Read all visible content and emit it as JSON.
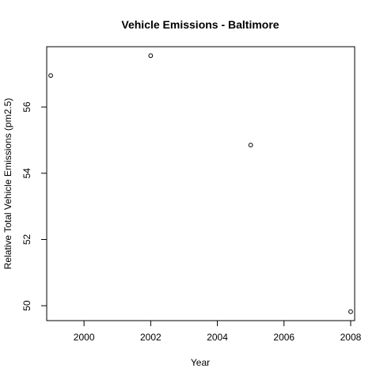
{
  "chart_data": {
    "type": "scatter",
    "title": "Vehicle Emissions - Baltimore",
    "xlabel": "Year",
    "ylabel": "Relative Total Vehicle Emissions (pm2.5)",
    "x": [
      1999,
      2002,
      2005,
      2008
    ],
    "y": [
      56.95,
      57.55,
      54.85,
      49.82
    ],
    "xlim": [
      1998.88,
      2008.12
    ],
    "ylim": [
      49.55,
      57.82
    ],
    "xticks": [
      2000,
      2002,
      2004,
      2006,
      2008
    ],
    "yticks": [
      50,
      52,
      54,
      56
    ],
    "xtick_labels": [
      "2000",
      "2002",
      "2004",
      "2006",
      "2008"
    ],
    "ytick_labels": [
      "50",
      "52",
      "54",
      "56"
    ],
    "grid": false,
    "marker": "open-circle"
  }
}
